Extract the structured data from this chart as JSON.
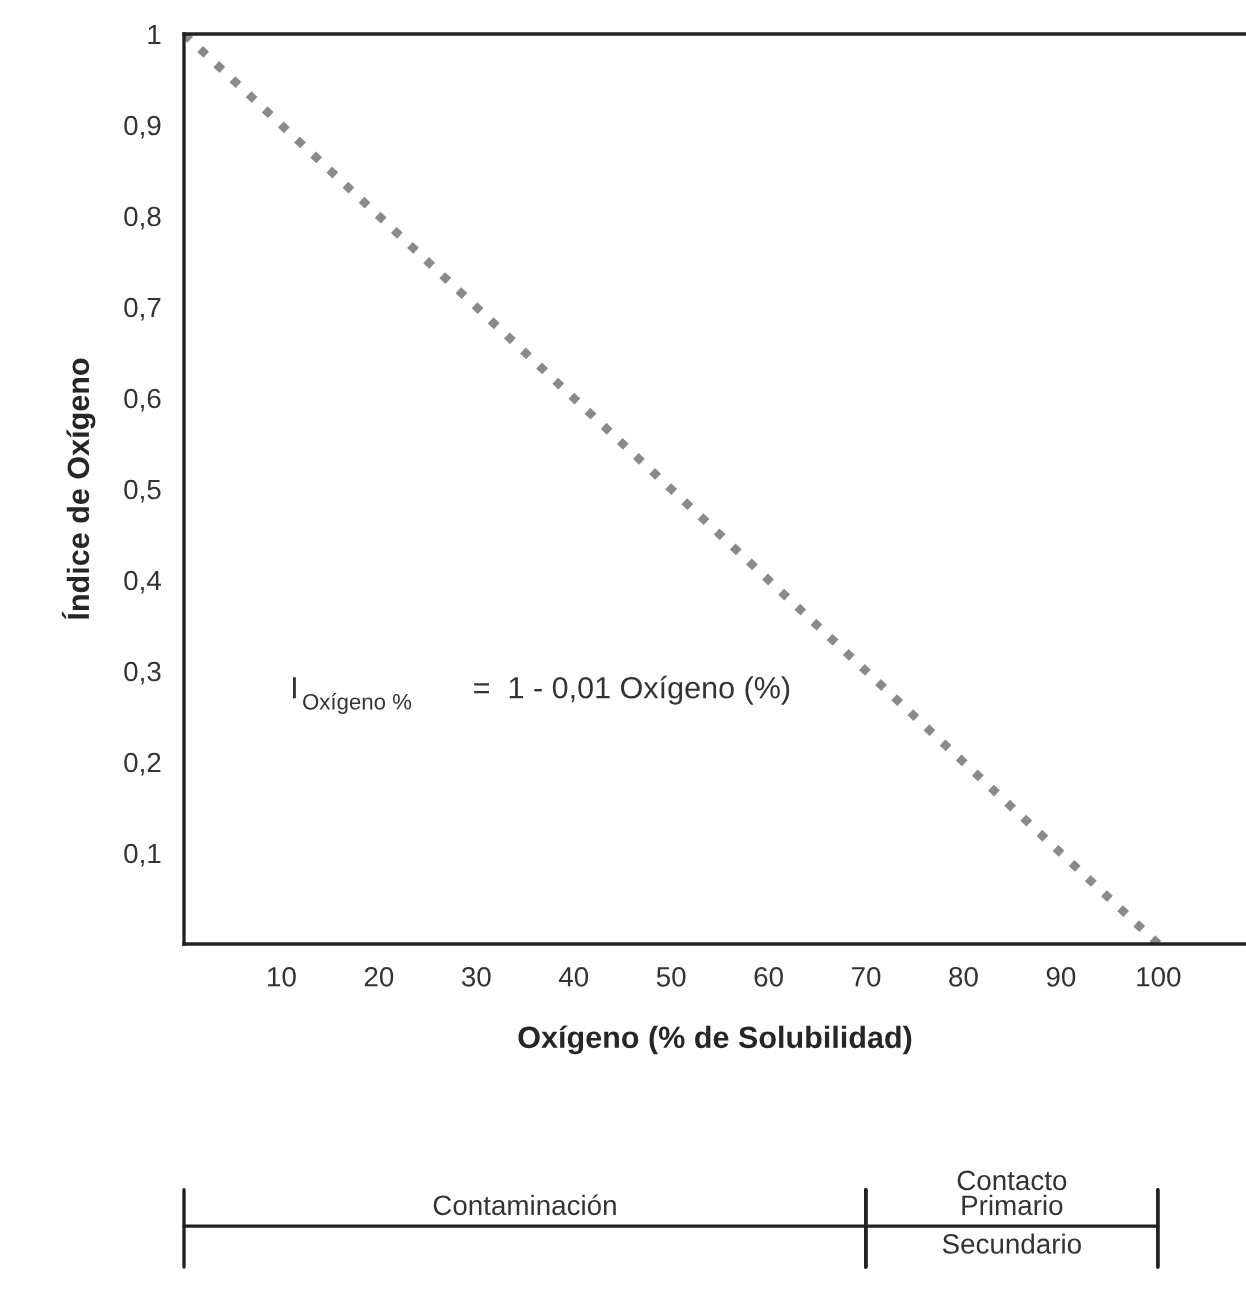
{
  "chart_data": {
    "type": "line",
    "xlabel": "Oxígeno (% de Solubilidad)",
    "ylabel": "Índice de Oxígeno",
    "x": [
      0,
      100
    ],
    "series": [
      {
        "color": "#8a8a8a",
        "values": [
          1,
          0
        ]
      }
    ],
    "line_style": "dotted",
    "marker": "none",
    "grid": false,
    "xlim": [
      0,
      109
    ],
    "ylim": [
      0,
      1
    ],
    "xticks": [
      10,
      20,
      30,
      40,
      50,
      60,
      70,
      80,
      90,
      100
    ],
    "yticks": [
      {
        "value": 0.1,
        "label": "0,1"
      },
      {
        "value": 0.2,
        "label": "0,2"
      },
      {
        "value": 0.3,
        "label": "0,3"
      },
      {
        "value": 0.4,
        "label": "0,4"
      },
      {
        "value": 0.5,
        "label": "0,5"
      },
      {
        "value": 0.6,
        "label": "0,6"
      },
      {
        "value": 0.7,
        "label": "0,7"
      },
      {
        "value": 0.8,
        "label": "0,8"
      },
      {
        "value": 0.9,
        "label": "0,9"
      },
      {
        "value": 1,
        "label": "1"
      }
    ],
    "annotations": [
      "I$_{Oxígeno %}$ =  1 - 0,01 Oxígeno (%)",
      "Contaminación",
      "Contacto\nPrimario",
      "Secundario"
    ]
  }
}
